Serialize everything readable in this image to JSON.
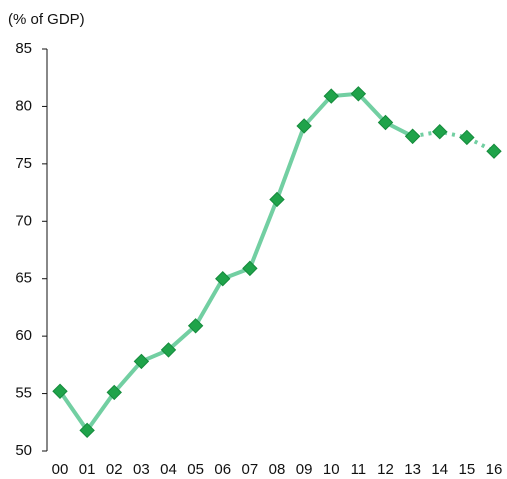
{
  "chart_data": {
    "type": "line",
    "y_label": "(% of GDP)",
    "categories": [
      "00",
      "01",
      "02",
      "03",
      "04",
      "05",
      "06",
      "07",
      "08",
      "09",
      "10",
      "11",
      "12",
      "13",
      "14",
      "15",
      "16"
    ],
    "series": [
      {
        "color": "#72cfa2",
        "marker_color": "#1fa34a",
        "dash": false,
        "values": [
          55.2,
          51.8,
          55.1,
          57.8,
          58.8,
          60.9,
          65.0,
          65.9,
          71.9,
          78.3,
          80.9,
          81.1,
          78.6,
          77.4,
          null,
          null,
          null
        ]
      },
      {
        "color": "#72cfa2",
        "marker_color": "#1fa34a",
        "dash": true,
        "values": [
          null,
          null,
          null,
          null,
          null,
          null,
          null,
          null,
          null,
          null,
          null,
          null,
          null,
          77.4,
          77.8,
          77.3,
          76.1
        ]
      }
    ],
    "ylim": [
      50,
      85
    ],
    "yticks": [
      50,
      55,
      60,
      65,
      70,
      75,
      80,
      85
    ]
  }
}
